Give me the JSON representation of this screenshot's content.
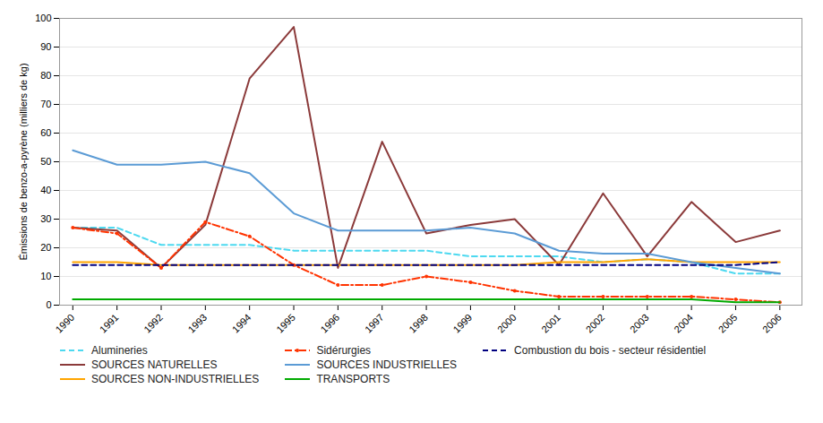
{
  "chart_data": {
    "type": "line",
    "ylabel": "Émissions de benzo-a-pyrène (milliers de kg)",
    "x": [
      1990,
      1991,
      1992,
      1993,
      1994,
      1995,
      1996,
      1997,
      1998,
      1999,
      2000,
      2001,
      2002,
      2003,
      2004,
      2005,
      2006
    ],
    "series": [
      {
        "name": "Alumineries",
        "color": "#4DD9F0",
        "line_style": "dashed",
        "values": [
          27,
          27,
          21,
          21,
          21,
          19,
          19,
          19,
          19,
          17,
          17,
          17,
          15,
          16,
          15,
          11,
          11
        ]
      },
      {
        "name": "SOURCES NATURELLES",
        "color": "#8B3A3A",
        "line_style": "solid",
        "values": [
          27,
          26,
          13,
          28,
          79,
          97,
          13,
          57,
          25,
          28,
          30,
          14,
          39,
          17,
          36,
          22,
          26
        ]
      },
      {
        "name": "SOURCES NON-INDUSTRIELLES",
        "color": "#FFA500",
        "line_style": "solid",
        "values": [
          15,
          15,
          14,
          14,
          14,
          14,
          14,
          14,
          14,
          14,
          14,
          15,
          15,
          16,
          15,
          15,
          15
        ]
      },
      {
        "name": "Sidérurgies",
        "color": "#FF3300",
        "line_style": "dashdot",
        "marker": "dot",
        "values": [
          27,
          25,
          13,
          29,
          24,
          14,
          7,
          7,
          10,
          8,
          5,
          3,
          3,
          3,
          3,
          2,
          1
        ]
      },
      {
        "name": "SOURCES INDUSTRIELLES",
        "color": "#5B9BD5",
        "line_style": "solid",
        "values": [
          54,
          49,
          49,
          50,
          46,
          32,
          26,
          26,
          26,
          27,
          25,
          19,
          18,
          18,
          15,
          13,
          11
        ]
      },
      {
        "name": "TRANSPORTS",
        "color": "#00AA00",
        "line_style": "solid",
        "values": [
          2,
          2,
          2,
          2,
          2,
          2,
          2,
          2,
          2,
          2,
          2,
          2,
          2,
          2,
          2,
          1,
          1
        ]
      },
      {
        "name": "Combustion du bois - secteur résidentiel",
        "color": "#000080",
        "line_style": "dashed",
        "values": [
          14,
          14,
          14,
          14,
          14,
          14,
          14,
          14,
          14,
          14,
          14,
          14,
          14,
          14,
          14,
          14,
          15
        ]
      }
    ],
    "xlim": [
      1989.7,
      2006.5
    ],
    "xticks": [
      1990,
      1991,
      1992,
      1993,
      1994,
      1995,
      1996,
      1997,
      1998,
      1999,
      2000,
      2001,
      2002,
      2003,
      2004,
      2005,
      2006
    ],
    "ylim": [
      0,
      100
    ],
    "yticks": [
      0,
      10,
      20,
      30,
      40,
      50,
      60,
      70,
      80,
      90,
      100
    ],
    "grid": true,
    "legend": "bottom"
  }
}
